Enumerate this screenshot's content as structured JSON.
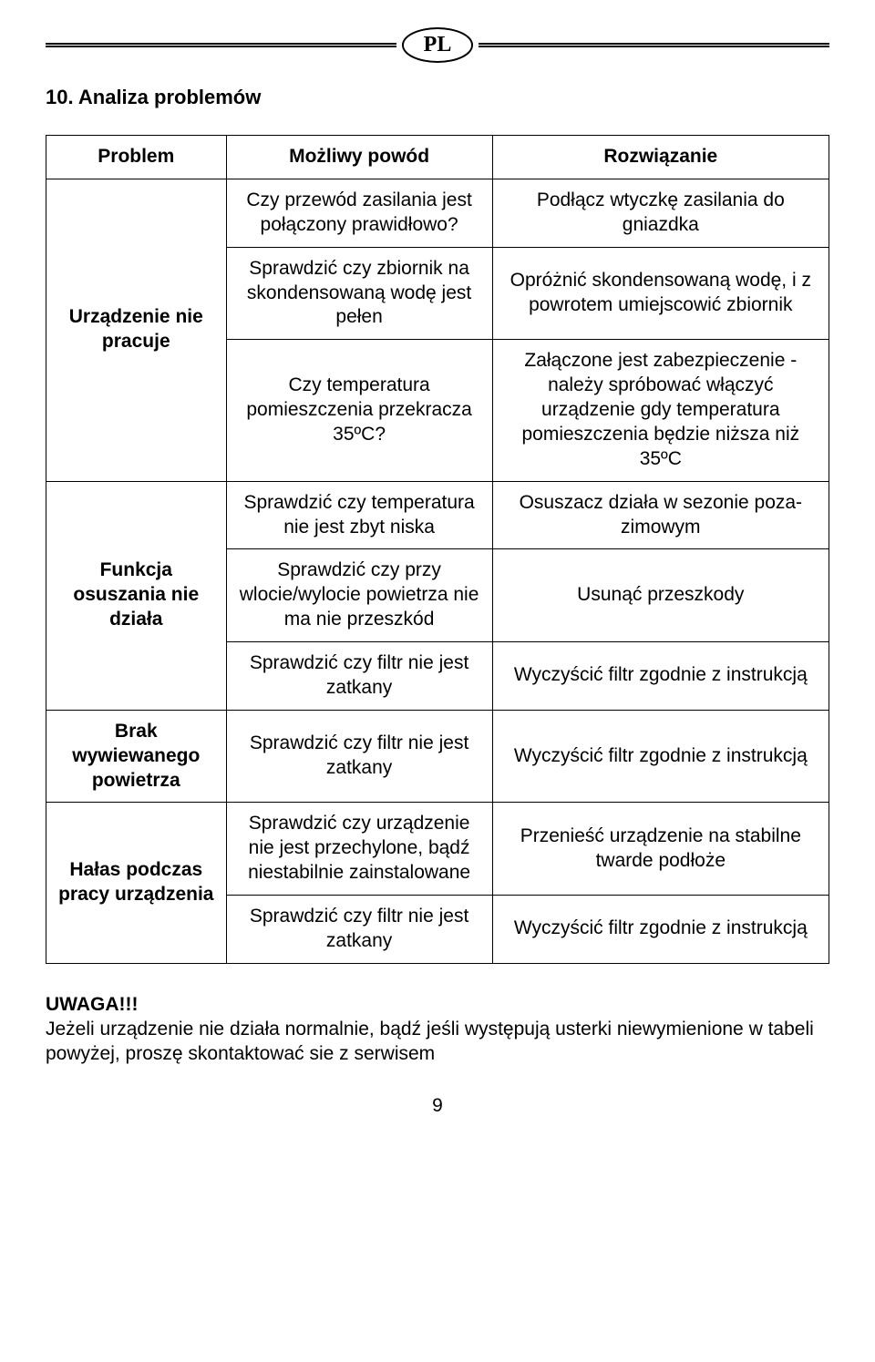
{
  "banner": {
    "label": "PL"
  },
  "section_title": "10. Analiza problemów",
  "headers": {
    "col1": "Problem",
    "col2": "Możliwy powód",
    "col3": "Rozwiązanie"
  },
  "groups": [
    {
      "problem": "Urządzenie nie pracuje",
      "rows": [
        {
          "cause": "Czy przewód zasilania jest połączony prawidłowo?",
          "fix": "Podłącz wtyczkę zasilania do gniazdka"
        },
        {
          "cause": "Sprawdzić czy zbiornik na skondensowaną wodę jest pełen",
          "fix": "Opróżnić skondensowaną wodę, i z powrotem umiejscowić zbiornik"
        },
        {
          "cause": "Czy temperatura pomieszczenia przekracza 35ºC?",
          "fix": "Załączone jest zabezpieczenie - należy spróbować włączyć urządzenie gdy temperatura pomieszczenia będzie niższa niż 35ºC"
        }
      ]
    },
    {
      "problem": "Funkcja osuszania nie działa",
      "rows": [
        {
          "cause": "Sprawdzić czy temperatura nie jest zbyt niska",
          "fix": "Osuszacz działa w sezonie poza-zimowym"
        },
        {
          "cause": "Sprawdzić czy przy wlocie/wylocie powietrza nie ma nie przeszkód",
          "fix": "Usunąć przeszkody"
        },
        {
          "cause": "Sprawdzić czy filtr nie jest zatkany",
          "fix": "Wyczyścić filtr zgodnie z instrukcją"
        }
      ]
    },
    {
      "problem": "Brak wywiewanego powietrza",
      "rows": [
        {
          "cause": "Sprawdzić czy filtr nie jest zatkany",
          "fix": "Wyczyścić filtr zgodnie z instrukcją"
        }
      ]
    },
    {
      "problem": "Hałas podczas pracy urządzenia",
      "rows": [
        {
          "cause": "Sprawdzić czy urządzenie nie jest przechylone, bądź niestabilnie zainstalowane",
          "fix": "Przenieść urządzenie na stabilne twarde podłoże"
        },
        {
          "cause": "Sprawdzić czy filtr nie jest zatkany",
          "fix": "Wyczyścić filtr zgodnie z instrukcją"
        }
      ]
    }
  ],
  "note": {
    "head": "UWAGA!!!",
    "body": "Jeżeli urządzenie nie działa normalnie, bądź jeśli występują usterki niewymienione w tabeli powyżej, proszę skontaktować sie z serwisem"
  },
  "page_number": "9"
}
